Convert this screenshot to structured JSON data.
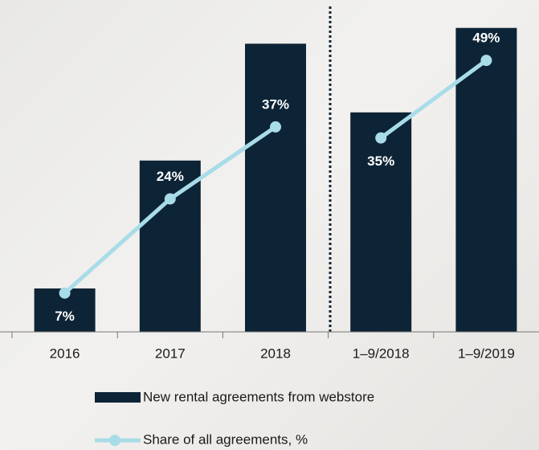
{
  "chart_data": {
    "type": "bar",
    "categories": [
      "2016",
      "2017",
      "2018",
      "1–9/2018",
      "1–9/2019"
    ],
    "ylim": [
      0,
      400
    ],
    "y2lim": [
      0,
      57
    ],
    "series": [
      {
        "name": "New rental agreements from webstore",
        "color": "#0d2436",
        "values": [
          55,
          217,
          365,
          278,
          385
        ]
      },
      {
        "name": "Share of all agreements, %",
        "color": "#a8dce8",
        "axis": "y2",
        "type": "line",
        "values": [
          7,
          24,
          37,
          35,
          49
        ],
        "value_labels": [
          "7%",
          "24%",
          "37%",
          "35%",
          "49%"
        ]
      }
    ]
  }
}
